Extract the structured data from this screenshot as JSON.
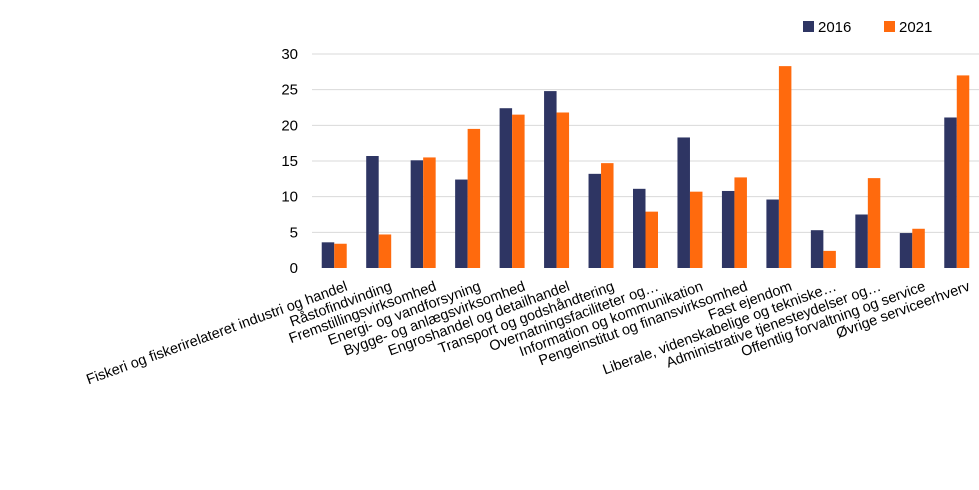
{
  "chart_data": {
    "type": "bar",
    "title": "",
    "xlabel": "",
    "ylabel": "",
    "ylim": [
      0,
      30
    ],
    "yticks": [
      0,
      5,
      10,
      15,
      20,
      25,
      30
    ],
    "grid": true,
    "legend_position": "top-right",
    "categories": [
      "Fiskeri og fiskerirelateret industri og handel",
      "Råstofindvinding",
      "Fremstillingsvirksomhed",
      "Energi- og vandforsyning",
      "Bygge- og anlægsvirksomhed",
      "Engroshandel og detailhandel",
      "Transport og godshåndtering",
      "Overnatningsfaciliteter og…",
      "Information og kommunikation",
      "Pengeinstitut og finansvirksomhed",
      "Fast ejendom",
      "Liberale, videnskabelige og tekniske…",
      "Administrative tjenesteydelser og…",
      "Offentlig forvaltning og service",
      "Øvrige serviceerhverv"
    ],
    "series": [
      {
        "name": "2016",
        "color": "#2e3563",
        "values": [
          3.6,
          15.7,
          15.1,
          12.4,
          22.4,
          24.8,
          13.2,
          11.1,
          18.3,
          10.8,
          9.6,
          5.3,
          7.5,
          4.9,
          21.1
        ]
      },
      {
        "name": "2021",
        "color": "#ff6a0d",
        "values": [
          3.4,
          4.7,
          15.5,
          19.5,
          21.5,
          21.8,
          14.7,
          7.9,
          10.7,
          12.7,
          28.3,
          2.4,
          12.6,
          5.5,
          27.0
        ]
      }
    ]
  }
}
